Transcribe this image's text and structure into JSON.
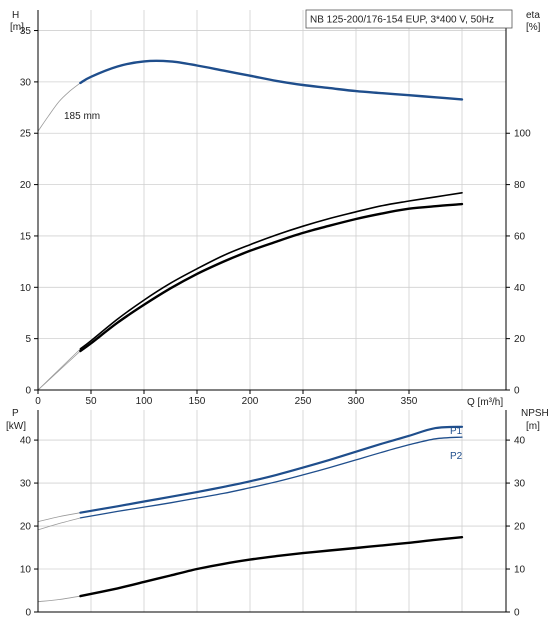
{
  "colors": {
    "background": "#ffffff",
    "grid": "#d0d0d0",
    "axis": "#000000",
    "head_curve": "#1f4e8c",
    "power_curve": "#1f4e8c",
    "efficiency_curve": "#000000",
    "npsh_curve": "#000000",
    "extension": "#9a9a9a"
  },
  "chart_data": [
    {
      "panel": "head-efficiency",
      "type": "line",
      "title": "NB 125-200/176-154 EUP, 3*400 V, 50Hz",
      "xlabel": "Q [m³/h]",
      "ylabel": [
        "H",
        "[m]"
      ],
      "y2label": [
        "eta",
        "[%]"
      ],
      "xlim": [
        0,
        400
      ],
      "ylim": [
        0,
        37
      ],
      "y2lim": [
        0,
        148
      ],
      "x_ticks": [
        "0",
        "50",
        "100",
        "150",
        "200",
        "250",
        "300",
        "350"
      ],
      "y_ticks": [
        "0",
        "5",
        "10",
        "15",
        "20",
        "25",
        "30",
        "35"
      ],
      "y2_ticks": [
        "0",
        "20",
        "40",
        "60",
        "80",
        "100"
      ],
      "grid": true,
      "annotations": [
        "185 mm"
      ],
      "series": [
        {
          "role": "head",
          "axis": "left",
          "x": [
            40,
            50,
            75,
            100,
            125,
            150,
            175,
            200,
            225,
            250,
            275,
            300,
            325,
            350,
            375,
            400
          ],
          "y": [
            29.9,
            30.5,
            31.5,
            32.0,
            32.0,
            31.6,
            31.1,
            30.6,
            30.1,
            29.7,
            29.4,
            29.1,
            28.9,
            28.7,
            28.5,
            28.3
          ],
          "extension_x": [
            0,
            10,
            20,
            30,
            40
          ],
          "extension_y": [
            25.2,
            26.7,
            28.1,
            29.1,
            29.9
          ]
        },
        {
          "role": "efficiency-upper",
          "axis": "right",
          "x": [
            40,
            50,
            75,
            100,
            125,
            150,
            175,
            200,
            225,
            250,
            275,
            300,
            325,
            350,
            375,
            400
          ],
          "y": [
            16.0,
            19.2,
            27.6,
            35.0,
            41.6,
            47.2,
            52.4,
            56.6,
            60.4,
            63.8,
            66.8,
            69.4,
            71.8,
            73.6,
            75.2,
            76.8
          ],
          "extension_x": [
            0,
            40
          ],
          "extension_y": [
            0,
            16.0
          ]
        },
        {
          "role": "efficiency-lower",
          "axis": "right",
          "x": [
            40,
            50,
            75,
            100,
            125,
            150,
            175,
            200,
            225,
            250,
            275,
            300,
            325,
            350,
            375,
            400
          ],
          "y": [
            15.2,
            18.2,
            26.2,
            33.2,
            39.6,
            45.2,
            50.0,
            54.2,
            57.8,
            61.2,
            64.0,
            66.6,
            68.8,
            70.6,
            71.6,
            72.4
          ],
          "extension_x": [
            0,
            40
          ],
          "extension_y": [
            0,
            15.2
          ]
        }
      ]
    },
    {
      "panel": "power-npsh",
      "type": "line",
      "xlabel": "",
      "ylabel": [
        "P",
        "[kW]"
      ],
      "y2label": [
        "NPSH",
        "[m]"
      ],
      "xlim": [
        0,
        400
      ],
      "ylim": [
        0,
        47
      ],
      "y2lim": [
        0,
        47
      ],
      "y_ticks": [
        "0",
        "10",
        "20",
        "30",
        "40"
      ],
      "y2_ticks": [
        "0",
        "10",
        "20",
        "30",
        "40"
      ],
      "grid": true,
      "series": [
        {
          "name": "P1",
          "axis": "left",
          "x": [
            40,
            75,
            100,
            125,
            150,
            175,
            200,
            225,
            250,
            275,
            300,
            325,
            350,
            375,
            400
          ],
          "y": [
            23.1,
            24.6,
            25.7,
            26.8,
            27.9,
            29.1,
            30.4,
            31.9,
            33.6,
            35.4,
            37.3,
            39.2,
            41.0,
            42.8,
            43.1
          ],
          "extension_x": [
            0,
            20,
            40
          ],
          "extension_y": [
            21.0,
            22.2,
            23.1
          ]
        },
        {
          "name": "P2",
          "axis": "left",
          "x": [
            40,
            75,
            100,
            125,
            150,
            175,
            200,
            225,
            250,
            275,
            300,
            325,
            350,
            375,
            400
          ],
          "y": [
            21.9,
            23.4,
            24.4,
            25.4,
            26.5,
            27.6,
            28.9,
            30.3,
            31.9,
            33.6,
            35.4,
            37.2,
            38.9,
            40.3,
            40.7
          ],
          "extension_x": [
            0,
            20,
            40
          ],
          "extension_y": [
            19.1,
            20.6,
            21.9
          ]
        },
        {
          "role": "npsh",
          "axis": "right",
          "x": [
            40,
            75,
            100,
            125,
            150,
            175,
            200,
            225,
            250,
            275,
            300,
            325,
            350,
            375,
            400
          ],
          "y": [
            3.7,
            5.5,
            7.0,
            8.5,
            10.0,
            11.2,
            12.2,
            13.0,
            13.7,
            14.3,
            14.9,
            15.5,
            16.1,
            16.8,
            17.4
          ],
          "extension_x": [
            0,
            20,
            40
          ],
          "extension_y": [
            2.4,
            2.9,
            3.7
          ]
        }
      ]
    }
  ]
}
